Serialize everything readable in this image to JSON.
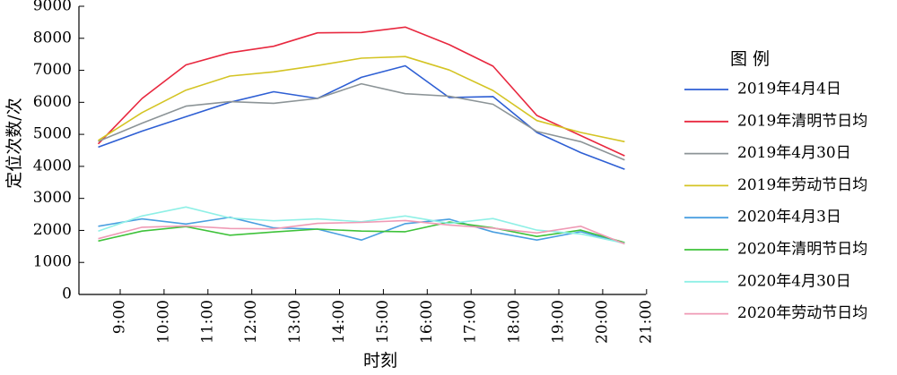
{
  "chart_data": {
    "type": "line",
    "title": "",
    "xlabel": "时刻",
    "ylabel": "定位次数/次",
    "ylim": [
      0,
      9000
    ],
    "yticks": [
      0,
      1000,
      2000,
      3000,
      4000,
      5000,
      6000,
      7000,
      8000,
      9000
    ],
    "xticks": [
      "9:00",
      "10:00",
      "11:00",
      "12:00",
      "13:00",
      "14:00",
      "15:00",
      "16:00",
      "17:00",
      "18:00",
      "19:00",
      "20:00",
      "21:00"
    ],
    "x": [
      "8:30",
      "9:30",
      "10:30",
      "11:30",
      "12:30",
      "13:30",
      "14:30",
      "15:30",
      "16:30",
      "17:30",
      "18:30",
      "19:30",
      "20:30"
    ],
    "grid": false,
    "legend": {
      "title": "图  例",
      "placement": "right"
    },
    "series": [
      {
        "name": "2019年4月4日",
        "color": "#2e5fd4",
        "values": [
          4600,
          5100,
          5550,
          6000,
          6330,
          6120,
          6780,
          7140,
          6150,
          6180,
          5060,
          4430,
          3910
        ]
      },
      {
        "name": "2019年清明节日均",
        "color": "#e8283f",
        "values": [
          4700,
          6120,
          7170,
          7550,
          7750,
          8170,
          8180,
          8350,
          7800,
          7130,
          5590,
          4960,
          4330
        ]
      },
      {
        "name": "2019年4月30日",
        "color": "#8c9497",
        "values": [
          4780,
          5350,
          5880,
          6020,
          5970,
          6120,
          6580,
          6270,
          6190,
          5940,
          5090,
          4770,
          4200
        ]
      },
      {
        "name": "2019年劳动节日均",
        "color": "#d4c424",
        "values": [
          4810,
          5680,
          6380,
          6820,
          6950,
          7150,
          7380,
          7430,
          7010,
          6370,
          5430,
          5060,
          4770
        ]
      },
      {
        "name": "2020年4月3日",
        "color": "#4a9fe0",
        "values": [
          2130,
          2360,
          2200,
          2410,
          2080,
          2040,
          1700,
          2210,
          2350,
          1950,
          1700,
          1960,
          1590
        ]
      },
      {
        "name": "2020年清明节日均",
        "color": "#3ec23a",
        "values": [
          1670,
          1980,
          2120,
          1850,
          1950,
          2040,
          1980,
          1960,
          2260,
          2080,
          1810,
          2010,
          1620
        ]
      },
      {
        "name": "2020年4月30日",
        "color": "#8ff0e6",
        "values": [
          1980,
          2450,
          2730,
          2390,
          2300,
          2360,
          2270,
          2450,
          2220,
          2370,
          2010,
          1890,
          1600
        ]
      },
      {
        "name": "2020年劳动节日均",
        "color": "#ef9ab5",
        "values": [
          1740,
          2100,
          2140,
          2060,
          2050,
          2220,
          2250,
          2310,
          2170,
          2070,
          1920,
          2130,
          1580
        ]
      }
    ]
  }
}
